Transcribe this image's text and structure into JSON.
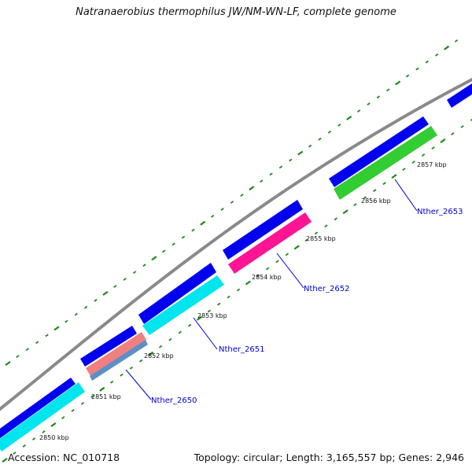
{
  "title": "Natranaerobius thermophilus JW/NM-WN-LF, complete genome",
  "accession_text": "Accession: NC_010718",
  "summary_text": "Topology: circular; Length: 3,165,557 bp; Genes: 2,946",
  "colors": {
    "backbone": "#8a8a8a",
    "forward_cds": "#0000ee",
    "ticks": "#1a8a1a",
    "gene_label": "#0000cc",
    "tick_label": "#111111"
  },
  "kbp_labels": [
    "2850 kbp",
    "2851 kbp",
    "2852 kbp",
    "2853 kbp",
    "2854 kbp",
    "2855 kbp",
    "2856 kbp",
    "2857 kbp"
  ],
  "genes": [
    {
      "label": "Nther_2650",
      "color": "#5b8fc8",
      "secondary_color": "#f08080"
    },
    {
      "label": "Nther_2651",
      "color": "#00e5ee"
    },
    {
      "label": "Nther_2652",
      "color": "#ff1493"
    },
    {
      "label": "Nther_2653",
      "color": "#32cd32"
    }
  ]
}
